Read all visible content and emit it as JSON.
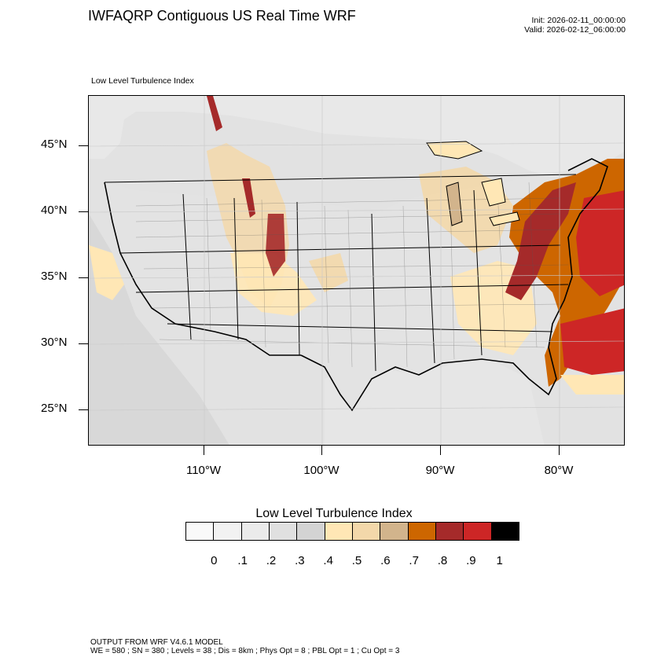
{
  "header": {
    "title": "IWFAQRP Contiguous US Real Time WRF",
    "init": "Init: 2026-02-11_00:00:00",
    "valid": "Valid: 2026-02-12_06:00:00"
  },
  "map": {
    "subtitle": "Low Level Turbulence Index",
    "lat_labels": [
      "45°N",
      "40°N",
      "35°N",
      "30°N",
      "25°N"
    ],
    "lon_labels": [
      "110°W",
      "100°W",
      "90°W",
      "80°W"
    ]
  },
  "legend": {
    "title": "Low Level Turbulence Index",
    "colors": [
      "#f9f9f9",
      "#f2f2f2",
      "#ebebeb",
      "#e0e0e0",
      "#d3d3d3",
      "#ffe7b5",
      "#f3d8aa",
      "#d2b48c",
      "#cd6600",
      "#a52a2a",
      "#cd2626",
      "#000000"
    ],
    "labels": [
      "0",
      ".1",
      ".2",
      ".3",
      ".4",
      ".5",
      ".6",
      ".7",
      ".8",
      ".9",
      "1"
    ]
  },
  "footer": {
    "line1": "OUTPUT FROM WRF V4.6.1 MODEL",
    "line2": "WE = 580 ; SN = 380 ; Levels = 38 ; Dis = 8km ; Phys Opt = 8 ; PBL Opt = 1 ; Cu Opt = 3"
  }
}
